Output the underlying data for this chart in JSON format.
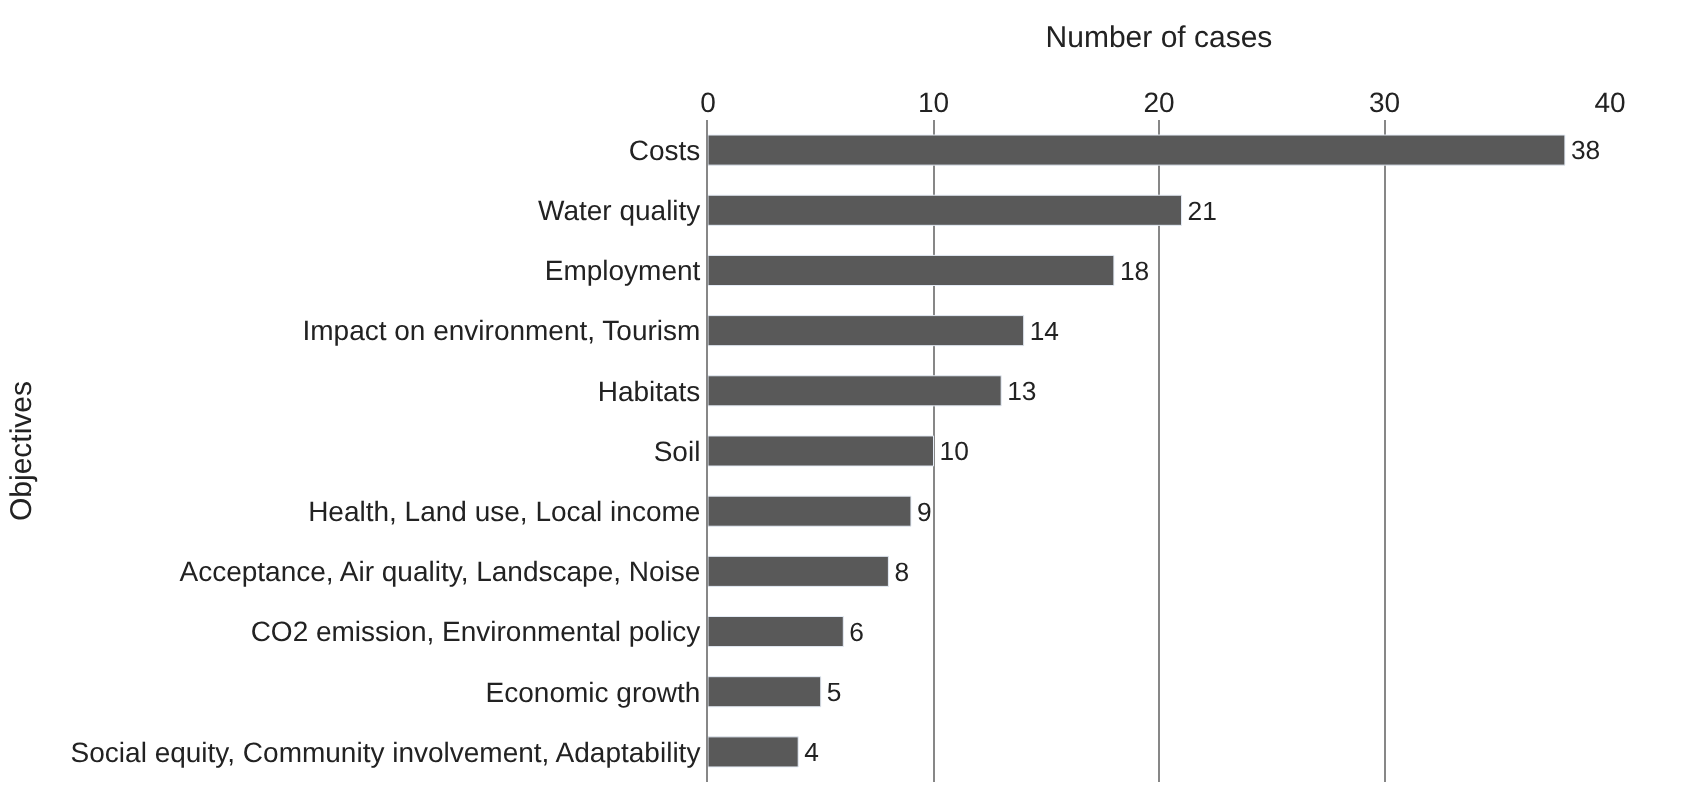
{
  "chart_data": {
    "type": "bar",
    "orientation": "horizontal",
    "xlabel": "Number of cases",
    "ylabel": "Objectives",
    "categories": [
      "Costs",
      "Water quality",
      "Employment",
      "Impact on environment, Tourism",
      "Habitats",
      "Soil",
      "Health, Land use, Local income",
      "Acceptance, Air quality, Landscape, Noise",
      "CO2 emission, Environmental policy",
      "Economic growth",
      "Social equity, Community involvement, Adaptability"
    ],
    "values": [
      38,
      21,
      18,
      14,
      13,
      10,
      9,
      8,
      6,
      5,
      4
    ],
    "color": "#595959",
    "xlim": [
      0,
      40
    ],
    "xticks": [
      0,
      10,
      20,
      30,
      40
    ],
    "grid": "x",
    "data_labels": true,
    "legend": false
  }
}
